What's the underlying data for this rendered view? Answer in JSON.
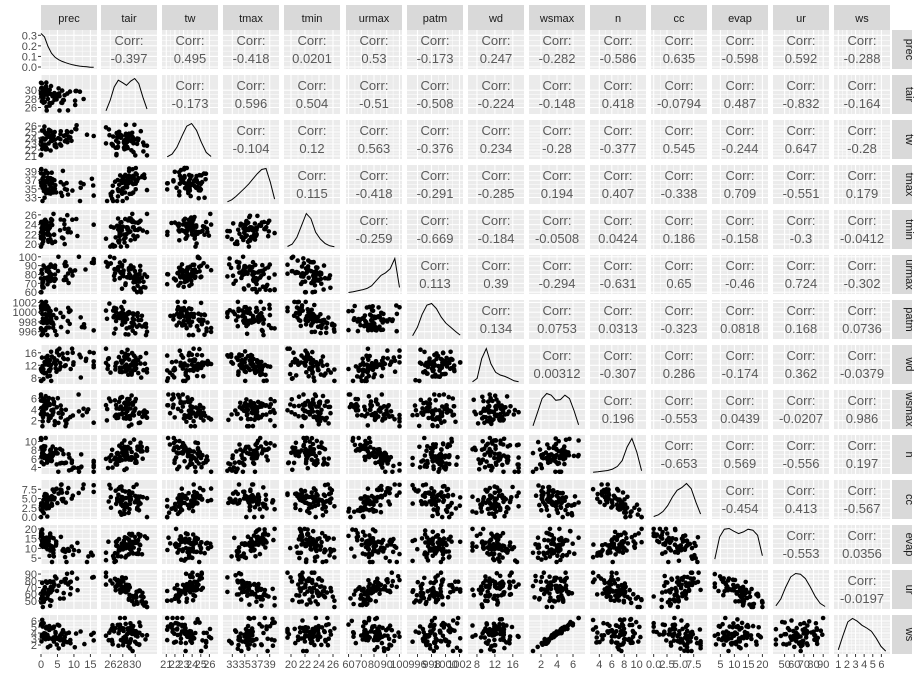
{
  "chart_data": {
    "type": "scatter-matrix",
    "title": "",
    "variables": [
      "prec",
      "tair",
      "tw",
      "tmax",
      "tmin",
      "urmax",
      "patm",
      "wd",
      "wsmax",
      "n",
      "cc",
      "evap",
      "ur",
      "ws"
    ],
    "ranges": {
      "prec": [
        0,
        17
      ],
      "tair": [
        24.5,
        33.5
      ],
      "tw": [
        20.5,
        27
      ],
      "tmax": [
        31.5,
        40.5
      ],
      "tmin": [
        19,
        27
      ],
      "urmax": [
        58,
        102
      ],
      "patm": [
        994.5,
        1002.5
      ],
      "wd": [
        6,
        18.5
      ],
      "wsmax": [
        0.5,
        7.5
      ],
      "n": [
        2.5,
        11.5
      ],
      "cc": [
        -0.5,
        10
      ],
      "evap": [
        2,
        22
      ],
      "ur": [
        38,
        96
      ],
      "ws": [
        0.5,
        7
      ]
    },
    "ticks": {
      "prec": [
        0,
        5,
        10,
        15
      ],
      "tair": [
        26,
        28,
        30
      ],
      "tw": [
        21,
        22,
        23,
        24,
        25,
        26
      ],
      "tmax": [
        33,
        35,
        37,
        39
      ],
      "tmin": [
        20,
        22,
        24,
        26
      ],
      "urmax": [
        60,
        70,
        80,
        90,
        100
      ],
      "patm": [
        996,
        998,
        1000,
        1002
      ],
      "wd": [
        8,
        12,
        16
      ],
      "wsmax": [
        2,
        4,
        6
      ],
      "n": [
        4,
        6,
        8,
        10
      ],
      "cc": [
        0,
        2.5,
        5,
        7.5
      ],
      "evap": [
        5,
        10,
        15,
        20
      ],
      "ur": [
        50,
        60,
        70,
        80,
        90
      ],
      "ws": [
        1,
        2,
        3,
        4,
        5,
        6
      ]
    },
    "yticks_first_row": [
      0,
      0.1,
      0.2,
      0.3
    ],
    "yticks_first_row_labels": [
      "0.0",
      "0.1",
      "0.2",
      "0.3"
    ],
    "ytick_labels": {
      "tair": [
        "26",
        "28",
        "30"
      ],
      "tw": [
        "21",
        "22",
        "23",
        "24",
        "25",
        "26"
      ],
      "tmax": [
        "33",
        "35",
        "37",
        "39"
      ],
      "tmin": [
        "20",
        "22",
        "24",
        "26"
      ],
      "urmax": [
        "60",
        "70",
        "80",
        "90",
        "100"
      ],
      "patm": [
        "996",
        "998",
        "1000",
        "1002"
      ],
      "wd": [
        "8",
        "12",
        "16"
      ],
      "wsmax": [
        "2",
        "4",
        "6"
      ],
      "n": [
        "4",
        "6",
        "8",
        "10"
      ],
      "cc": [
        "0.0",
        "2.5",
        "5.0",
        "7.5"
      ],
      "evap": [
        "5",
        "10",
        "15",
        "20"
      ],
      "ur": [
        "50",
        "60",
        "70",
        "80",
        "90"
      ],
      "ws": [
        "2",
        "3",
        "4",
        "5",
        "6"
      ]
    },
    "xtick_labels": {
      "prec": [
        "0",
        "5",
        "10",
        "15"
      ],
      "tair": [
        "26",
        "28",
        "30"
      ],
      "tw": [
        "21",
        "22",
        "23",
        "24",
        "25",
        "26"
      ],
      "tmax": [
        "33",
        "35",
        "37",
        "39"
      ],
      "tmin": [
        "20",
        "22",
        "24",
        "26"
      ],
      "urmax": [
        "60",
        "70",
        "80",
        "90",
        "100"
      ],
      "patm": [
        "996",
        "998",
        "1000",
        "1002"
      ],
      "wd": [
        "8",
        "12",
        "16"
      ],
      "wsmax": [
        "2",
        "4",
        "6"
      ],
      "n": [
        "4",
        "6",
        "8",
        "10"
      ],
      "cc": [
        "0.0",
        "2.5",
        "5.0",
        "7.5"
      ],
      "evap": [
        "5",
        "10",
        "15",
        "20"
      ],
      "ur": [
        "50",
        "60",
        "70",
        "80",
        "90"
      ],
      "ws": [
        "1",
        "2",
        "3",
        "4",
        "5",
        "6"
      ]
    },
    "corr_label": "Corr:",
    "correlations": [
      [
        "prec",
        "tair",
        "-0.397"
      ],
      [
        "prec",
        "tw",
        "0.495"
      ],
      [
        "prec",
        "tmax",
        "-0.418"
      ],
      [
        "prec",
        "tmin",
        "0.0201"
      ],
      [
        "prec",
        "urmax",
        "0.53"
      ],
      [
        "prec",
        "patm",
        "-0.173"
      ],
      [
        "prec",
        "wd",
        "0.247"
      ],
      [
        "prec",
        "wsmax",
        "-0.282"
      ],
      [
        "prec",
        "n",
        "-0.586"
      ],
      [
        "prec",
        "cc",
        "0.635"
      ],
      [
        "prec",
        "evap",
        "-0.598"
      ],
      [
        "prec",
        "ur",
        "0.592"
      ],
      [
        "prec",
        "ws",
        "-0.288"
      ],
      [
        "tair",
        "tw",
        "-0.173"
      ],
      [
        "tair",
        "tmax",
        "0.596"
      ],
      [
        "tair",
        "tmin",
        "0.504"
      ],
      [
        "tair",
        "urmax",
        "-0.51"
      ],
      [
        "tair",
        "patm",
        "-0.508"
      ],
      [
        "tair",
        "wd",
        "-0.224"
      ],
      [
        "tair",
        "wsmax",
        "-0.148"
      ],
      [
        "tair",
        "n",
        "0.418"
      ],
      [
        "tair",
        "cc",
        "-0.0794"
      ],
      [
        "tair",
        "evap",
        "0.487"
      ],
      [
        "tair",
        "ur",
        "-0.832"
      ],
      [
        "tair",
        "ws",
        "-0.164"
      ],
      [
        "tw",
        "tmax",
        "-0.104"
      ],
      [
        "tw",
        "tmin",
        "0.12"
      ],
      [
        "tw",
        "urmax",
        "0.563"
      ],
      [
        "tw",
        "patm",
        "-0.376"
      ],
      [
        "tw",
        "wd",
        "0.234"
      ],
      [
        "tw",
        "wsmax",
        "-0.28"
      ],
      [
        "tw",
        "n",
        "-0.377"
      ],
      [
        "tw",
        "cc",
        "0.545"
      ],
      [
        "tw",
        "evap",
        "-0.244"
      ],
      [
        "tw",
        "ur",
        "0.647"
      ],
      [
        "tw",
        "ws",
        "-0.28"
      ],
      [
        "tmax",
        "tmin",
        "0.115"
      ],
      [
        "tmax",
        "urmax",
        "-0.418"
      ],
      [
        "tmax",
        "patm",
        "-0.291"
      ],
      [
        "tmax",
        "wd",
        "-0.285"
      ],
      [
        "tmax",
        "wsmax",
        "0.194"
      ],
      [
        "tmax",
        "n",
        "0.407"
      ],
      [
        "tmax",
        "cc",
        "-0.338"
      ],
      [
        "tmax",
        "evap",
        "0.709"
      ],
      [
        "tmax",
        "ur",
        "-0.551"
      ],
      [
        "tmax",
        "ws",
        "0.179"
      ],
      [
        "tmin",
        "urmax",
        "-0.259"
      ],
      [
        "tmin",
        "patm",
        "-0.669"
      ],
      [
        "tmin",
        "wd",
        "-0.184"
      ],
      [
        "tmin",
        "wsmax",
        "-0.0508"
      ],
      [
        "tmin",
        "n",
        "0.0424"
      ],
      [
        "tmin",
        "cc",
        "0.186"
      ],
      [
        "tmin",
        "evap",
        "-0.158"
      ],
      [
        "tmin",
        "ur",
        "-0.3"
      ],
      [
        "tmin",
        "ws",
        "-0.0412"
      ],
      [
        "urmax",
        "patm",
        "0.113"
      ],
      [
        "urmax",
        "wd",
        "0.39"
      ],
      [
        "urmax",
        "wsmax",
        "-0.294"
      ],
      [
        "urmax",
        "n",
        "-0.631"
      ],
      [
        "urmax",
        "cc",
        "0.65"
      ],
      [
        "urmax",
        "evap",
        "-0.46"
      ],
      [
        "urmax",
        "ur",
        "0.724"
      ],
      [
        "urmax",
        "ws",
        "-0.302"
      ],
      [
        "patm",
        "wd",
        "0.134"
      ],
      [
        "patm",
        "wsmax",
        "0.0753"
      ],
      [
        "patm",
        "n",
        "0.0313"
      ],
      [
        "patm",
        "cc",
        "-0.323"
      ],
      [
        "patm",
        "evap",
        "0.0818"
      ],
      [
        "patm",
        "ur",
        "0.168"
      ],
      [
        "patm",
        "ws",
        "0.0736"
      ],
      [
        "wd",
        "wsmax",
        "0.00312"
      ],
      [
        "wd",
        "n",
        "-0.307"
      ],
      [
        "wd",
        "cc",
        "0.286"
      ],
      [
        "wd",
        "evap",
        "-0.174"
      ],
      [
        "wd",
        "ur",
        "0.362"
      ],
      [
        "wd",
        "ws",
        "-0.0379"
      ],
      [
        "wsmax",
        "n",
        "0.196"
      ],
      [
        "wsmax",
        "cc",
        "-0.553"
      ],
      [
        "wsmax",
        "evap",
        "0.0439"
      ],
      [
        "wsmax",
        "ur",
        "-0.0207"
      ],
      [
        "wsmax",
        "ws",
        "0.986"
      ],
      [
        "n",
        "cc",
        "-0.653"
      ],
      [
        "n",
        "evap",
        "0.569"
      ],
      [
        "n",
        "ur",
        "-0.556"
      ],
      [
        "n",
        "ws",
        "0.197"
      ],
      [
        "cc",
        "evap",
        "-0.454"
      ],
      [
        "cc",
        "ur",
        "0.413"
      ],
      [
        "cc",
        "ws",
        "-0.567"
      ],
      [
        "evap",
        "ur",
        "-0.553"
      ],
      [
        "evap",
        "ws",
        "0.0356"
      ],
      [
        "ur",
        "ws",
        "-0.0197"
      ]
    ],
    "density_shapes": {
      "prec": [
        1,
        0.9,
        0.62,
        0.42,
        0.3,
        0.23,
        0.18,
        0.14,
        0.11,
        0.08,
        0.06,
        0.04,
        0.03,
        0.02,
        0.01,
        0.005
      ],
      "tair": [
        0.05,
        0.35,
        0.75,
        0.95,
        0.88,
        0.8,
        0.92,
        1,
        0.85,
        0.45,
        0.1
      ],
      "tw": [
        0.02,
        0.1,
        0.3,
        0.62,
        0.92,
        1,
        0.8,
        0.45,
        0.15,
        0.03
      ],
      "tmax": [
        0.02,
        0.08,
        0.18,
        0.3,
        0.42,
        0.55,
        0.7,
        0.85,
        0.97,
        1,
        0.6,
        0.1
      ],
      "tmin": [
        0.03,
        0.1,
        0.3,
        0.65,
        1,
        0.85,
        0.45,
        0.25,
        0.12,
        0.05,
        0.02
      ],
      "urmax": [
        0.0,
        0.02,
        0.05,
        0.08,
        0.12,
        0.2,
        0.35,
        0.5,
        0.58,
        0.7,
        1,
        0.15
      ],
      "patm": [
        0.05,
        0.3,
        0.68,
        0.95,
        1,
        0.85,
        0.6,
        0.42,
        0.3,
        0.18,
        0.07
      ],
      "wd": [
        0.02,
        0.12,
        0.7,
        1,
        0.55,
        0.3,
        0.22,
        0.18,
        0.12,
        0.05,
        0.02
      ],
      "wsmax": [
        0.05,
        0.45,
        0.85,
        1,
        0.95,
        0.8,
        0.82,
        0.95,
        0.85,
        0.5,
        0.08
      ],
      "n": [
        0.01,
        0.02,
        0.04,
        0.06,
        0.1,
        0.18,
        0.35,
        0.75,
        1,
        0.6,
        0.05
      ],
      "cc": [
        0.03,
        0.08,
        0.18,
        0.35,
        0.6,
        0.8,
        0.88,
        1,
        0.85,
        0.45,
        0.1
      ],
      "evap": [
        0.1,
        0.75,
        0.98,
        1,
        0.92,
        0.85,
        0.9,
        0.98,
        0.95,
        0.8,
        0.2
      ],
      "ur": [
        0.05,
        0.25,
        0.6,
        0.9,
        1,
        0.98,
        0.85,
        0.6,
        0.32,
        0.12,
        0.03
      ],
      "ws": [
        0.08,
        0.5,
        0.9,
        1,
        0.92,
        0.8,
        0.72,
        0.62,
        0.42,
        0.18,
        0.04
      ]
    },
    "legend": "none",
    "grid": true
  }
}
